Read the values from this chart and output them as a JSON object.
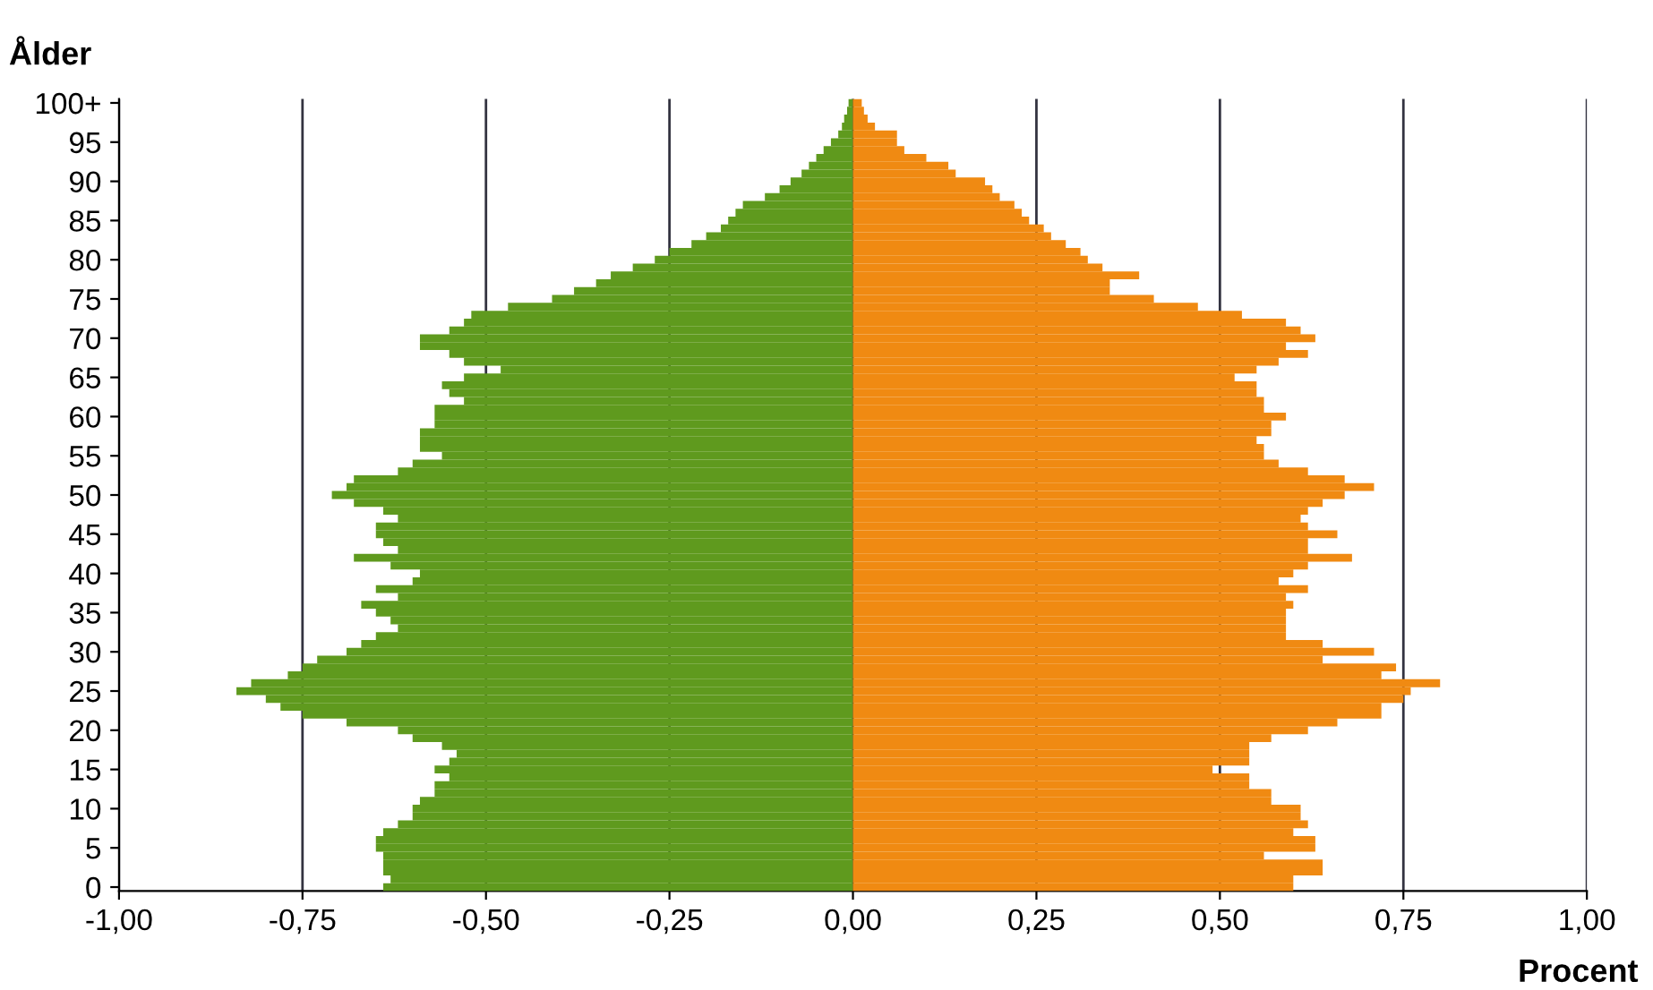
{
  "chart_data": {
    "type": "bar",
    "orientation": "horizontal",
    "ylabel": "Ålder",
    "xlabel": "Procent",
    "categories": [
      "100+",
      null,
      null,
      null,
      null,
      "95",
      null,
      null,
      null,
      null,
      "90",
      null,
      null,
      null,
      null,
      "85",
      null,
      null,
      null,
      null,
      "80",
      null,
      null,
      null,
      null,
      "75",
      null,
      null,
      null,
      null,
      "70",
      null,
      null,
      null,
      null,
      "65",
      null,
      null,
      null,
      null,
      "60",
      null,
      null,
      null,
      null,
      "55",
      null,
      null,
      null,
      null,
      "50",
      null,
      null,
      null,
      null,
      "45",
      null,
      null,
      null,
      null,
      "40",
      null,
      null,
      null,
      null,
      "35",
      null,
      null,
      null,
      null,
      "30",
      null,
      null,
      null,
      null,
      "25",
      null,
      null,
      null,
      null,
      "20",
      null,
      null,
      null,
      null,
      "15",
      null,
      null,
      null,
      null,
      "10",
      null,
      null,
      null,
      null,
      "5",
      null,
      null,
      null,
      null,
      "0"
    ],
    "series": [
      {
        "color": "#5f9a1e",
        "values": [
          -0.006,
          -0.008,
          -0.012,
          -0.015,
          -0.02,
          -0.03,
          -0.04,
          -0.05,
          -0.06,
          -0.07,
          -0.085,
          -0.1,
          -0.12,
          -0.15,
          -0.16,
          -0.17,
          -0.18,
          -0.2,
          -0.22,
          -0.25,
          -0.27,
          -0.3,
          -0.33,
          -0.35,
          -0.38,
          -0.41,
          -0.47,
          -0.52,
          -0.53,
          -0.55,
          -0.59,
          -0.59,
          -0.55,
          -0.53,
          -0.48,
          -0.53,
          -0.56,
          -0.55,
          -0.53,
          -0.57,
          -0.57,
          -0.57,
          -0.59,
          -0.59,
          -0.59,
          -0.56,
          -0.6,
          -0.62,
          -0.68,
          -0.69,
          -0.71,
          -0.68,
          -0.64,
          -0.62,
          -0.65,
          -0.65,
          -0.64,
          -0.62,
          -0.68,
          -0.63,
          -0.59,
          -0.6,
          -0.65,
          -0.62,
          -0.67,
          -0.65,
          -0.63,
          -0.62,
          -0.65,
          -0.67,
          -0.69,
          -0.73,
          -0.75,
          -0.77,
          -0.82,
          -0.84,
          -0.8,
          -0.78,
          -0.75,
          -0.69,
          -0.62,
          -0.6,
          -0.56,
          -0.54,
          -0.55,
          -0.57,
          -0.55,
          -0.57,
          -0.57,
          -0.59,
          -0.6,
          -0.6,
          -0.62,
          -0.64,
          -0.65,
          -0.65,
          -0.64,
          -0.64,
          -0.64,
          -0.63,
          -0.64
        ]
      },
      {
        "color": "#f08a12",
        "values": [
          0.012,
          0.015,
          0.02,
          0.03,
          0.06,
          0.06,
          0.07,
          0.1,
          0.13,
          0.14,
          0.18,
          0.19,
          0.2,
          0.22,
          0.23,
          0.24,
          0.26,
          0.27,
          0.29,
          0.31,
          0.32,
          0.34,
          0.39,
          0.35,
          0.35,
          0.41,
          0.47,
          0.53,
          0.59,
          0.61,
          0.63,
          0.59,
          0.62,
          0.58,
          0.55,
          0.52,
          0.55,
          0.55,
          0.56,
          0.56,
          0.59,
          0.57,
          0.57,
          0.55,
          0.56,
          0.56,
          0.58,
          0.62,
          0.67,
          0.71,
          0.67,
          0.64,
          0.62,
          0.61,
          0.62,
          0.66,
          0.62,
          0.62,
          0.68,
          0.62,
          0.6,
          0.58,
          0.62,
          0.59,
          0.6,
          0.59,
          0.59,
          0.59,
          0.59,
          0.64,
          0.71,
          0.64,
          0.74,
          0.72,
          0.8,
          0.76,
          0.75,
          0.72,
          0.72,
          0.66,
          0.62,
          0.57,
          0.54,
          0.54,
          0.54,
          0.49,
          0.54,
          0.54,
          0.57,
          0.57,
          0.61,
          0.61,
          0.62,
          0.6,
          0.63,
          0.63,
          0.56,
          0.64,
          0.64,
          0.6,
          0.6
        ]
      }
    ],
    "xlim": [
      -1,
      1
    ],
    "xticks": [
      {
        "value": -1,
        "label": "-1,00"
      },
      {
        "value": -0.75,
        "label": "-0,75"
      },
      {
        "value": -0.5,
        "label": "-0,50"
      },
      {
        "value": -0.25,
        "label": "-0,25"
      },
      {
        "value": 0,
        "label": "0,00"
      },
      {
        "value": 0.25,
        "label": "0,25"
      },
      {
        "value": 0.5,
        "label": "0,50"
      },
      {
        "value": 0.75,
        "label": "0,75"
      },
      {
        "value": 1,
        "label": "1,00"
      }
    ],
    "grid": "x",
    "stacked": true
  }
}
